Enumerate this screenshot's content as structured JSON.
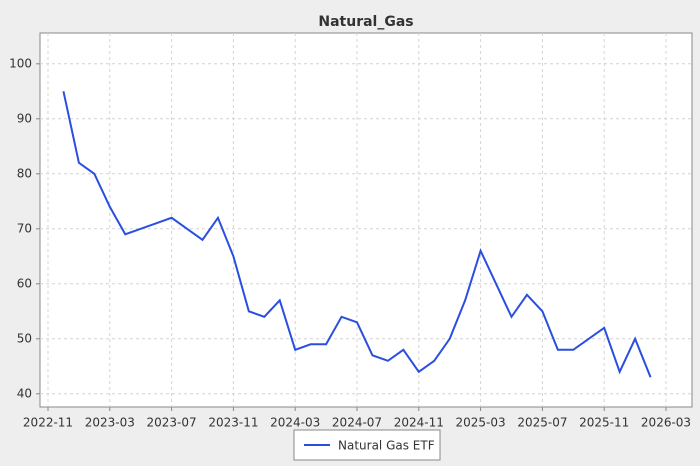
{
  "chart_data": {
    "type": "line",
    "title": "Natural_Gas",
    "x": [
      "2022-12",
      "2023-01",
      "2023-02",
      "2023-03",
      "2023-04",
      "2023-05",
      "2023-06",
      "2023-07",
      "2023-08",
      "2023-09",
      "2023-10",
      "2023-11",
      "2023-12",
      "2024-01",
      "2024-02",
      "2024-03",
      "2024-04",
      "2024-05",
      "2024-06",
      "2024-07",
      "2024-08",
      "2024-09",
      "2024-10",
      "2024-11",
      "2024-12",
      "2025-01",
      "2025-02",
      "2025-03",
      "2025-04",
      "2025-05",
      "2025-06",
      "2025-07",
      "2025-08",
      "2025-09",
      "2025-10",
      "2025-11",
      "2025-12",
      "2026-01",
      "2026-02"
    ],
    "series": [
      {
        "name": "Natural Gas ETF",
        "color": "#2a4fe0",
        "values": [
          95,
          82,
          80,
          74,
          69,
          70,
          71,
          72,
          70,
          68,
          72,
          65,
          55,
          54,
          57,
          48,
          49,
          49,
          54,
          53,
          47,
          46,
          48,
          44,
          46,
          50,
          57,
          66,
          60,
          54,
          58,
          55,
          48,
          48,
          50,
          52,
          44,
          50,
          43
        ]
      }
    ],
    "xlim": [
      "2022-11",
      "2026-03"
    ],
    "xticks": [
      "2022-11",
      "2023-03",
      "2023-07",
      "2023-11",
      "2024-03",
      "2024-07",
      "2024-11",
      "2025-03",
      "2025-07",
      "2025-11",
      "2026-03"
    ],
    "ylim": [
      37.6,
      105.6
    ],
    "yticks": [
      40,
      50,
      60,
      70,
      80,
      90,
      100
    ],
    "grid": true
  }
}
